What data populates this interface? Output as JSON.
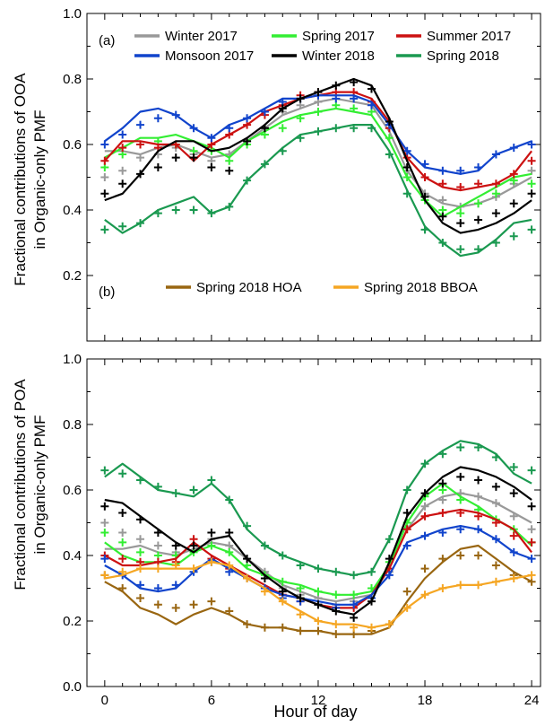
{
  "chart_data": [
    {
      "type": "line",
      "panel_label": "(a)",
      "ylabel_line1": "Fractional contributions of OOA",
      "ylabel_line2": "in Organic-only PMF",
      "xlabel": "",
      "xlim": [
        -1,
        24.5
      ],
      "ylim": [
        0,
        1.0
      ],
      "yticks": [
        0.2,
        0.4,
        0.6,
        0.8,
        1.0
      ],
      "ytick_labels": [
        "0.2",
        "0.4",
        "0.6",
        "0.8",
        "1.0"
      ],
      "xticks": [
        0,
        6,
        12,
        18,
        24
      ],
      "xtick_labels": [],
      "x": [
        0,
        1,
        2,
        3,
        4,
        5,
        6,
        7,
        8,
        9,
        10,
        11,
        12,
        13,
        14,
        15,
        16,
        17,
        18,
        19,
        20,
        21,
        22,
        23,
        24
      ],
      "series": [
        {
          "name": "Winter 2017",
          "color": "#999999",
          "line": [
            0.58,
            0.58,
            0.57,
            0.59,
            0.6,
            0.58,
            0.56,
            0.57,
            0.61,
            0.65,
            0.69,
            0.71,
            0.73,
            0.74,
            0.73,
            0.72,
            0.64,
            0.52,
            0.45,
            0.42,
            0.41,
            0.42,
            0.44,
            0.47,
            0.5
          ],
          "markers": [
            0.5,
            0.52,
            0.56,
            0.57,
            0.59,
            0.57,
            0.55,
            0.57,
            0.61,
            0.65,
            0.7,
            0.72,
            0.73,
            0.75,
            0.74,
            0.73,
            0.65,
            0.52,
            0.45,
            0.43,
            0.41,
            0.42,
            0.44,
            0.48,
            0.52
          ]
        },
        {
          "name": "Spring 2017",
          "color": "#33ee33",
          "line": [
            0.56,
            0.59,
            0.62,
            0.62,
            0.63,
            0.61,
            0.59,
            0.56,
            0.61,
            0.64,
            0.67,
            0.69,
            0.7,
            0.71,
            0.7,
            0.69,
            0.61,
            0.5,
            0.43,
            0.38,
            0.41,
            0.44,
            0.47,
            0.5,
            0.51
          ],
          "markers": [
            0.53,
            0.57,
            0.6,
            0.61,
            0.6,
            0.58,
            0.58,
            0.55,
            0.6,
            0.63,
            0.65,
            0.68,
            0.7,
            0.72,
            0.71,
            0.7,
            0.62,
            0.5,
            0.43,
            0.4,
            0.39,
            0.42,
            0.45,
            0.49,
            0.48
          ]
        },
        {
          "name": "Summer 2017",
          "color": "#cc1111",
          "line": [
            0.55,
            0.61,
            0.61,
            0.6,
            0.6,
            0.55,
            0.6,
            0.63,
            0.66,
            0.7,
            0.72,
            0.74,
            0.75,
            0.76,
            0.76,
            0.74,
            0.67,
            0.56,
            0.5,
            0.47,
            0.46,
            0.47,
            0.48,
            0.51,
            0.58
          ],
          "markers": [
            0.55,
            0.59,
            0.6,
            0.59,
            0.6,
            0.56,
            0.6,
            0.63,
            0.66,
            0.69,
            0.72,
            0.75,
            0.76,
            0.76,
            0.76,
            0.73,
            0.65,
            0.56,
            0.5,
            0.48,
            0.47,
            0.48,
            0.48,
            0.51,
            0.55
          ]
        },
        {
          "name": "Monsoon 2017",
          "color": "#1144cc",
          "line": [
            0.61,
            0.65,
            0.7,
            0.71,
            0.69,
            0.65,
            0.62,
            0.66,
            0.68,
            0.71,
            0.74,
            0.74,
            0.75,
            0.75,
            0.75,
            0.73,
            0.66,
            0.58,
            0.53,
            0.52,
            0.51,
            0.52,
            0.57,
            0.59,
            0.61
          ],
          "markers": [
            0.6,
            0.63,
            0.66,
            0.68,
            0.69,
            0.65,
            0.62,
            0.65,
            0.68,
            0.7,
            0.73,
            0.74,
            0.75,
            0.74,
            0.74,
            0.72,
            0.66,
            0.58,
            0.54,
            0.52,
            0.52,
            0.53,
            0.57,
            0.59,
            0.6
          ]
        },
        {
          "name": "Winter 2018",
          "color": "#000000",
          "line": [
            0.43,
            0.45,
            0.51,
            0.58,
            0.61,
            0.61,
            0.58,
            0.59,
            0.62,
            0.66,
            0.71,
            0.74,
            0.76,
            0.78,
            0.8,
            0.78,
            0.68,
            0.55,
            0.43,
            0.36,
            0.33,
            0.34,
            0.36,
            0.39,
            0.43
          ],
          "markers": [
            0.45,
            0.48,
            0.51,
            0.53,
            0.56,
            0.56,
            0.53,
            0.52,
            0.61,
            0.65,
            0.71,
            0.74,
            0.76,
            0.78,
            0.79,
            0.77,
            0.67,
            0.53,
            0.44,
            0.38,
            0.36,
            0.37,
            0.39,
            0.42,
            0.45
          ]
        },
        {
          "name": "Spring 2018",
          "color": "#1a9950",
          "line": [
            0.37,
            0.33,
            0.36,
            0.4,
            0.42,
            0.44,
            0.39,
            0.41,
            0.49,
            0.54,
            0.59,
            0.63,
            0.64,
            0.65,
            0.66,
            0.66,
            0.58,
            0.46,
            0.35,
            0.3,
            0.26,
            0.27,
            0.31,
            0.36,
            0.37
          ],
          "markers": [
            0.34,
            0.35,
            0.36,
            0.39,
            0.4,
            0.4,
            0.39,
            0.41,
            0.49,
            0.54,
            0.58,
            0.62,
            0.64,
            0.65,
            0.65,
            0.65,
            0.57,
            0.45,
            0.34,
            0.3,
            0.28,
            0.28,
            0.3,
            0.32,
            0.34
          ]
        }
      ]
    },
    {
      "type": "line",
      "panel_label": "(b)",
      "ylabel_line1": "Fractional contributions of POA",
      "ylabel_line2": "in Organic-only PMF",
      "xlabel": "Hour of day",
      "xlim": [
        -1,
        24.5
      ],
      "ylim": [
        0,
        1.0
      ],
      "yticks": [
        0.0,
        0.2,
        0.4,
        0.6,
        0.8,
        1.0
      ],
      "ytick_labels": [
        "0.0",
        "0.2",
        "0.4",
        "0.6",
        "0.8",
        "1.0"
      ],
      "xticks": [
        0,
        6,
        12,
        18,
        24
      ],
      "xtick_labels": [
        "0",
        "6",
        "12",
        "18",
        "24"
      ],
      "x": [
        0,
        1,
        2,
        3,
        4,
        5,
        6,
        7,
        8,
        9,
        10,
        11,
        12,
        13,
        14,
        15,
        16,
        17,
        18,
        19,
        20,
        21,
        22,
        23,
        24
      ],
      "series": [
        {
          "name": "",
          "color": "#999999",
          "line": [
            0.42,
            0.42,
            0.43,
            0.41,
            0.4,
            0.42,
            0.44,
            0.43,
            0.39,
            0.35,
            0.31,
            0.29,
            0.27,
            0.26,
            0.27,
            0.28,
            0.36,
            0.48,
            0.55,
            0.58,
            0.59,
            0.58,
            0.56,
            0.53,
            0.5
          ],
          "markers": [
            0.5,
            0.47,
            0.45,
            0.43,
            0.41,
            0.43,
            0.45,
            0.43,
            0.39,
            0.35,
            0.3,
            0.28,
            0.27,
            0.25,
            0.26,
            0.27,
            0.35,
            0.48,
            0.55,
            0.57,
            0.59,
            0.58,
            0.56,
            0.52,
            0.48
          ]
        },
        {
          "name": "",
          "color": "#33ee33",
          "line": [
            0.44,
            0.4,
            0.38,
            0.38,
            0.37,
            0.41,
            0.43,
            0.41,
            0.36,
            0.34,
            0.32,
            0.31,
            0.29,
            0.28,
            0.28,
            0.29,
            0.37,
            0.5,
            0.58,
            0.62,
            0.58,
            0.55,
            0.51,
            0.48,
            0.43
          ],
          "markers": [
            0.47,
            0.44,
            0.41,
            0.4,
            0.4,
            0.41,
            0.43,
            0.41,
            0.37,
            0.34,
            0.32,
            0.3,
            0.29,
            0.28,
            0.28,
            0.3,
            0.38,
            0.5,
            0.58,
            0.6,
            0.57,
            0.54,
            0.51,
            0.48,
            0.44
          ]
        },
        {
          "name": "",
          "color": "#cc1111",
          "line": [
            0.4,
            0.37,
            0.37,
            0.38,
            0.39,
            0.44,
            0.4,
            0.37,
            0.34,
            0.31,
            0.28,
            0.27,
            0.25,
            0.24,
            0.24,
            0.28,
            0.36,
            0.48,
            0.52,
            0.53,
            0.54,
            0.53,
            0.51,
            0.48,
            0.41
          ],
          "markers": [
            0.4,
            0.39,
            0.38,
            0.38,
            0.38,
            0.45,
            0.39,
            0.36,
            0.33,
            0.3,
            0.28,
            0.26,
            0.25,
            0.24,
            0.24,
            0.27,
            0.36,
            0.48,
            0.52,
            0.53,
            0.53,
            0.52,
            0.5,
            0.46,
            0.44
          ]
        },
        {
          "name": "",
          "color": "#1144cc",
          "line": [
            0.37,
            0.34,
            0.3,
            0.29,
            0.3,
            0.35,
            0.39,
            0.36,
            0.33,
            0.3,
            0.28,
            0.27,
            0.26,
            0.25,
            0.25,
            0.28,
            0.34,
            0.44,
            0.46,
            0.48,
            0.49,
            0.48,
            0.45,
            0.41,
            0.39
          ],
          "markers": [
            0.39,
            0.34,
            0.31,
            0.3,
            0.31,
            0.35,
            0.38,
            0.35,
            0.33,
            0.3,
            0.27,
            0.26,
            0.25,
            0.24,
            0.25,
            0.27,
            0.34,
            0.43,
            0.46,
            0.47,
            0.48,
            0.48,
            0.45,
            0.41,
            0.39
          ]
        },
        {
          "name": "",
          "color": "#000000",
          "line": [
            0.57,
            0.56,
            0.52,
            0.48,
            0.44,
            0.41,
            0.45,
            0.46,
            0.39,
            0.34,
            0.3,
            0.27,
            0.25,
            0.23,
            0.22,
            0.26,
            0.38,
            0.52,
            0.59,
            0.64,
            0.67,
            0.66,
            0.64,
            0.61,
            0.57
          ],
          "markers": [
            0.55,
            0.53,
            0.51,
            0.47,
            0.43,
            0.43,
            0.47,
            0.47,
            0.39,
            0.33,
            0.29,
            0.27,
            0.25,
            0.23,
            0.21,
            0.26,
            0.39,
            0.53,
            0.59,
            0.62,
            0.64,
            0.63,
            0.61,
            0.59,
            0.55
          ]
        },
        {
          "name": "",
          "color": "#1a9950",
          "line": [
            0.64,
            0.68,
            0.64,
            0.6,
            0.59,
            0.58,
            0.62,
            0.57,
            0.48,
            0.43,
            0.4,
            0.38,
            0.36,
            0.35,
            0.34,
            0.35,
            0.45,
            0.6,
            0.68,
            0.72,
            0.75,
            0.74,
            0.71,
            0.65,
            0.62
          ],
          "markers": [
            0.66,
            0.65,
            0.63,
            0.61,
            0.59,
            0.6,
            0.63,
            0.57,
            0.49,
            0.43,
            0.4,
            0.37,
            0.36,
            0.35,
            0.34,
            0.35,
            0.45,
            0.6,
            0.68,
            0.71,
            0.73,
            0.73,
            0.7,
            0.67,
            0.66
          ]
        },
        {
          "name": "Spring 2018 HOA",
          "color": "#996611",
          "line": [
            0.32,
            0.29,
            0.24,
            0.22,
            0.19,
            0.22,
            0.24,
            0.22,
            0.19,
            0.18,
            0.18,
            0.17,
            0.17,
            0.16,
            0.16,
            0.16,
            0.18,
            0.26,
            0.33,
            0.38,
            0.42,
            0.43,
            0.39,
            0.35,
            0.32
          ],
          "markers": [
            0.34,
            0.3,
            0.27,
            0.25,
            0.24,
            0.25,
            0.26,
            0.23,
            0.19,
            0.18,
            0.18,
            0.17,
            0.17,
            0.16,
            0.16,
            0.17,
            0.19,
            0.29,
            0.36,
            0.39,
            0.4,
            0.4,
            0.37,
            0.34,
            0.32
          ]
        },
        {
          "name": "Spring 2018 BBOA",
          "color": "#f5a623",
          "line": [
            0.33,
            0.34,
            0.36,
            0.36,
            0.36,
            0.36,
            0.38,
            0.37,
            0.33,
            0.3,
            0.26,
            0.23,
            0.2,
            0.19,
            0.19,
            0.18,
            0.19,
            0.24,
            0.28,
            0.3,
            0.31,
            0.31,
            0.32,
            0.33,
            0.34
          ],
          "markers": [
            0.34,
            0.35,
            0.36,
            0.36,
            0.37,
            0.36,
            0.38,
            0.37,
            0.33,
            0.29,
            0.26,
            0.22,
            0.2,
            0.19,
            0.18,
            0.18,
            0.19,
            0.24,
            0.28,
            0.3,
            0.31,
            0.31,
            0.32,
            0.33,
            0.34
          ]
        }
      ]
    }
  ]
}
